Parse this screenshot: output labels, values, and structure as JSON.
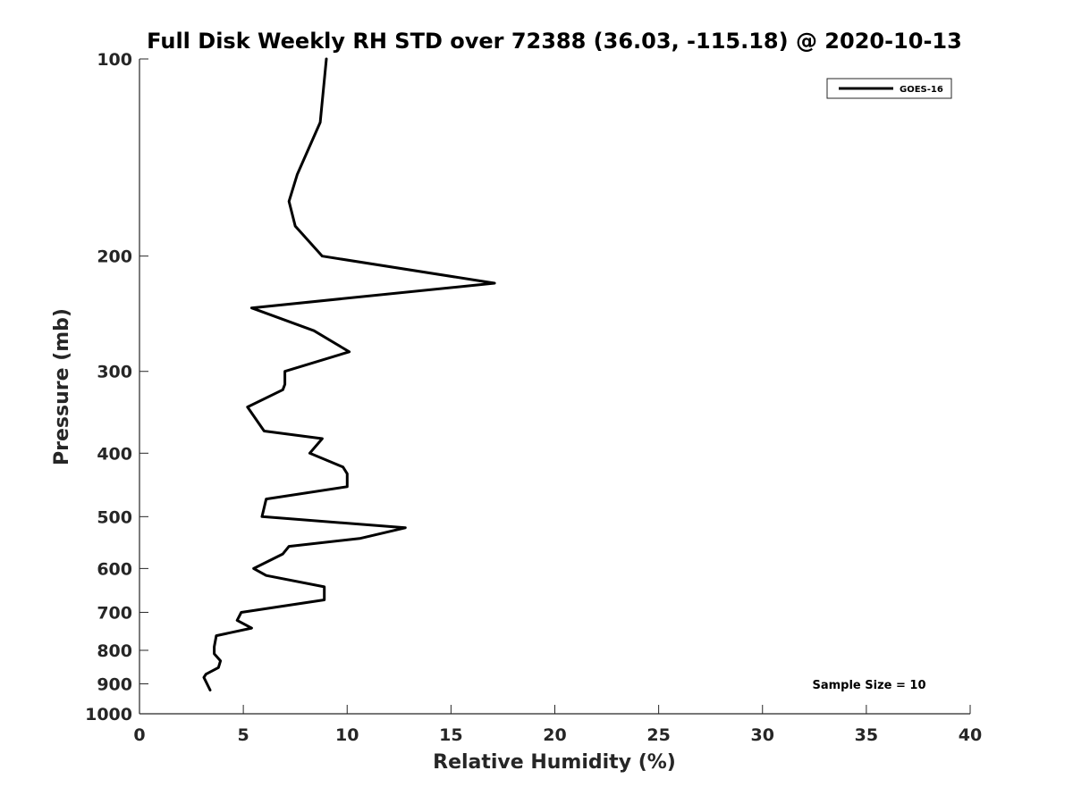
{
  "chart_data": {
    "type": "line",
    "title": "Full Disk Weekly RH STD over 72388 (36.03, -115.18) @ 2020-10-13",
    "xlabel": "Relative Humidity (%)",
    "ylabel": "Pressure (mb)",
    "xlim": [
      0,
      40
    ],
    "ylim": [
      100,
      1000
    ],
    "y_scale": "log",
    "y_reversed": true,
    "x_ticks": [
      "0",
      "5",
      "10",
      "15",
      "20",
      "25",
      "30",
      "35",
      "40"
    ],
    "y_ticks": [
      "100",
      "200",
      "300",
      "400",
      "500",
      "600",
      "700",
      "800",
      "900",
      "1000"
    ],
    "grid": false,
    "legend_position": "top-right",
    "annotation": "Sample Size = 10",
    "series": [
      {
        "name": "GOES-16",
        "color": "#000000",
        "x": [
          9.0,
          8.7,
          7.6,
          7.2,
          7.5,
          8.8,
          17.1,
          5.4,
          8.4,
          10.1,
          7.0,
          7.0,
          6.9,
          5.2,
          6.0,
          8.8,
          8.2,
          9.8,
          10.0,
          10.0,
          6.1,
          5.9,
          12.8,
          10.6,
          7.2,
          6.9,
          5.5,
          6.1,
          8.9,
          8.9,
          4.9,
          4.7,
          5.4,
          3.7,
          3.6,
          3.6,
          3.9,
          3.8,
          3.2,
          3.1,
          3.4
        ],
        "y": [
          100,
          125,
          150,
          165,
          180,
          200,
          220,
          240,
          260,
          280,
          300,
          314,
          320,
          340,
          370,
          380,
          400,
          420,
          430,
          450,
          470,
          500,
          520,
          540,
          555,
          570,
          600,
          615,
          640,
          670,
          700,
          720,
          740,
          760,
          790,
          810,
          830,
          850,
          870,
          880,
          920
        ]
      }
    ]
  }
}
